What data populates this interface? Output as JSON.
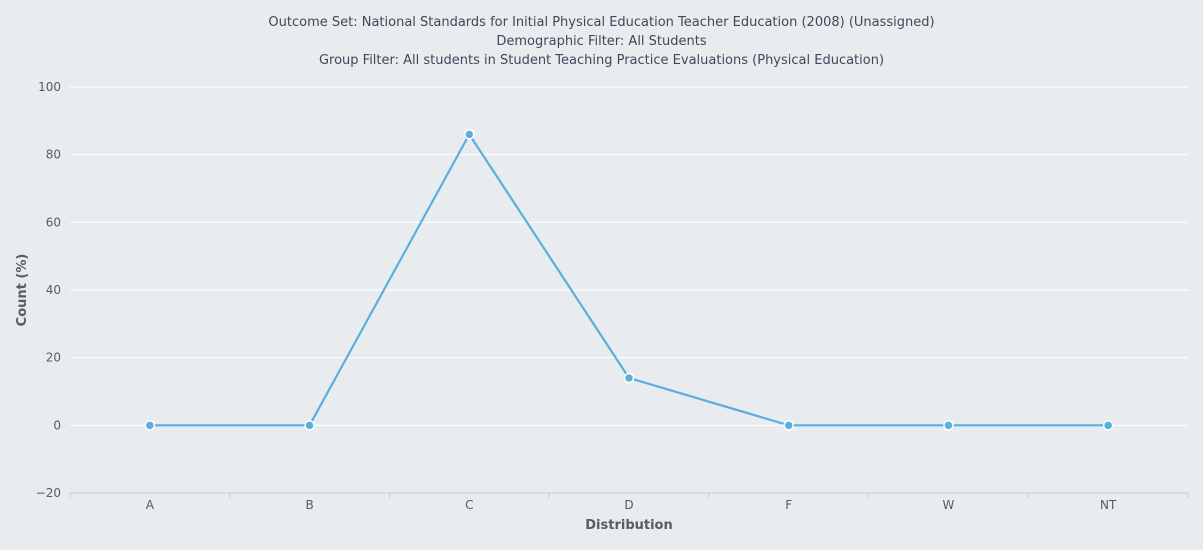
{
  "chart_data": {
    "type": "line",
    "title": "Outcome Set: National Standards for Initial Physical Education Teacher Education (2008) (Unassigned)",
    "subtitle_lines": [
      "Demographic Filter: All Students",
      "Group Filter: All students in Student Teaching Practice Evaluations (Physical Education)"
    ],
    "xlabel": "Distribution",
    "ylabel": "Count (%)",
    "categories": [
      "A",
      "B",
      "C",
      "D",
      "F",
      "W",
      "NT"
    ],
    "series": [
      {
        "values": [
          0,
          0,
          86,
          14,
          0,
          0,
          0
        ],
        "color": "#5aafde"
      }
    ],
    "ylim": [
      -20,
      100
    ],
    "yticks": [
      -20,
      0,
      20,
      40,
      60,
      80,
      100
    ],
    "grid": true,
    "legend": "none"
  },
  "colors": {
    "background": "#e9ecef",
    "gridline": "#ffffff",
    "series": "#5aafde",
    "text": "#3a4a5a"
  }
}
